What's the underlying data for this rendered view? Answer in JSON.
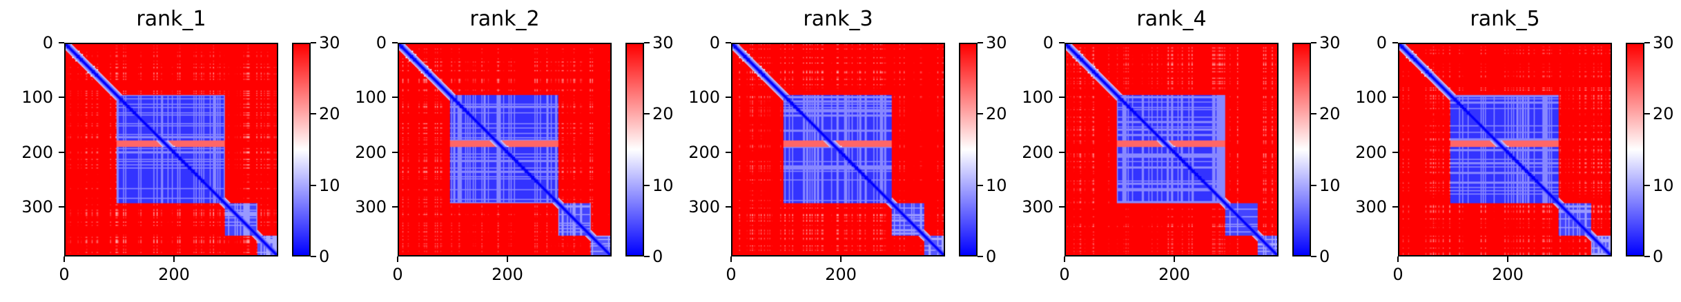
{
  "chart_data": [
    {
      "type": "heatmap",
      "title": "rank_1",
      "xlim": [
        0,
        390
      ],
      "ylim": [
        390,
        0
      ],
      "xticks": [
        "0",
        "200"
      ],
      "yticks": [
        "0",
        "100",
        "200",
        "300"
      ],
      "colorbar": {
        "range": [
          0,
          30
        ],
        "ticks": [
          "0",
          "10",
          "20",
          "30"
        ],
        "colors": [
          "#0000ff",
          "#ffffff",
          "#ff0000"
        ]
      },
      "blocks": [
        {
          "x": [
            95,
            295
          ],
          "y": [
            95,
            295
          ],
          "value": 3
        },
        {
          "x": [
            295,
            355
          ],
          "y": [
            295,
            355
          ],
          "value": 4
        },
        {
          "x": [
            355,
            390
          ],
          "y": [
            355,
            390
          ],
          "value": 5
        }
      ],
      "diagonal_value": 0,
      "background_value": 30
    },
    {
      "type": "heatmap",
      "title": "rank_2",
      "xlim": [
        0,
        390
      ],
      "ylim": [
        390,
        0
      ],
      "xticks": [
        "0",
        "200"
      ],
      "yticks": [
        "0",
        "100",
        "200",
        "300"
      ],
      "colorbar": {
        "range": [
          0,
          30
        ],
        "ticks": [
          "0",
          "10",
          "20",
          "30"
        ],
        "colors": [
          "#0000ff",
          "#ffffff",
          "#ff0000"
        ]
      },
      "blocks": [
        {
          "x": [
            95,
            295
          ],
          "y": [
            95,
            295
          ],
          "value": 3
        },
        {
          "x": [
            295,
            355
          ],
          "y": [
            295,
            355
          ],
          "value": 4
        },
        {
          "x": [
            355,
            390
          ],
          "y": [
            355,
            390
          ],
          "value": 5
        }
      ],
      "diagonal_value": 0,
      "background_value": 30
    },
    {
      "type": "heatmap",
      "title": "rank_3",
      "xlim": [
        0,
        390
      ],
      "ylim": [
        390,
        0
      ],
      "xticks": [
        "0",
        "200"
      ],
      "yticks": [
        "0",
        "100",
        "200",
        "300"
      ],
      "colorbar": {
        "range": [
          0,
          30
        ],
        "ticks": [
          "0",
          "10",
          "20",
          "30"
        ],
        "colors": [
          "#0000ff",
          "#ffffff",
          "#ff0000"
        ]
      },
      "blocks": [
        {
          "x": [
            95,
            295
          ],
          "y": [
            95,
            295
          ],
          "value": 3
        },
        {
          "x": [
            295,
            355
          ],
          "y": [
            295,
            355
          ],
          "value": 4
        },
        {
          "x": [
            355,
            390
          ],
          "y": [
            355,
            390
          ],
          "value": 5
        }
      ],
      "diagonal_value": 0,
      "background_value": 30
    },
    {
      "type": "heatmap",
      "title": "rank_4",
      "xlim": [
        0,
        390
      ],
      "ylim": [
        390,
        0
      ],
      "xticks": [
        "0",
        "200"
      ],
      "yticks": [
        "0",
        "100",
        "200",
        "300"
      ],
      "colorbar": {
        "range": [
          0,
          30
        ],
        "ticks": [
          "0",
          "10",
          "20",
          "30"
        ],
        "colors": [
          "#0000ff",
          "#ffffff",
          "#ff0000"
        ]
      },
      "blocks": [
        {
          "x": [
            95,
            295
          ],
          "y": [
            95,
            295
          ],
          "value": 3
        },
        {
          "x": [
            295,
            355
          ],
          "y": [
            295,
            355
          ],
          "value": 4
        },
        {
          "x": [
            355,
            390
          ],
          "y": [
            355,
            390
          ],
          "value": 5
        }
      ],
      "diagonal_value": 0,
      "background_value": 30
    },
    {
      "type": "heatmap",
      "title": "rank_5",
      "xlim": [
        0,
        390
      ],
      "ylim": [
        390,
        0
      ],
      "xticks": [
        "0",
        "200"
      ],
      "yticks": [
        "0",
        "100",
        "200",
        "300"
      ],
      "colorbar": {
        "range": [
          0,
          30
        ],
        "ticks": [
          "0",
          "10",
          "20",
          "30"
        ],
        "colors": [
          "#0000ff",
          "#ffffff",
          "#ff0000"
        ]
      },
      "blocks": [
        {
          "x": [
            95,
            295
          ],
          "y": [
            95,
            295
          ],
          "value": 3
        },
        {
          "x": [
            295,
            355
          ],
          "y": [
            295,
            355
          ],
          "value": 4
        },
        {
          "x": [
            355,
            390
          ],
          "y": [
            355,
            390
          ],
          "value": 5
        }
      ],
      "diagonal_value": 0,
      "background_value": 30
    }
  ]
}
